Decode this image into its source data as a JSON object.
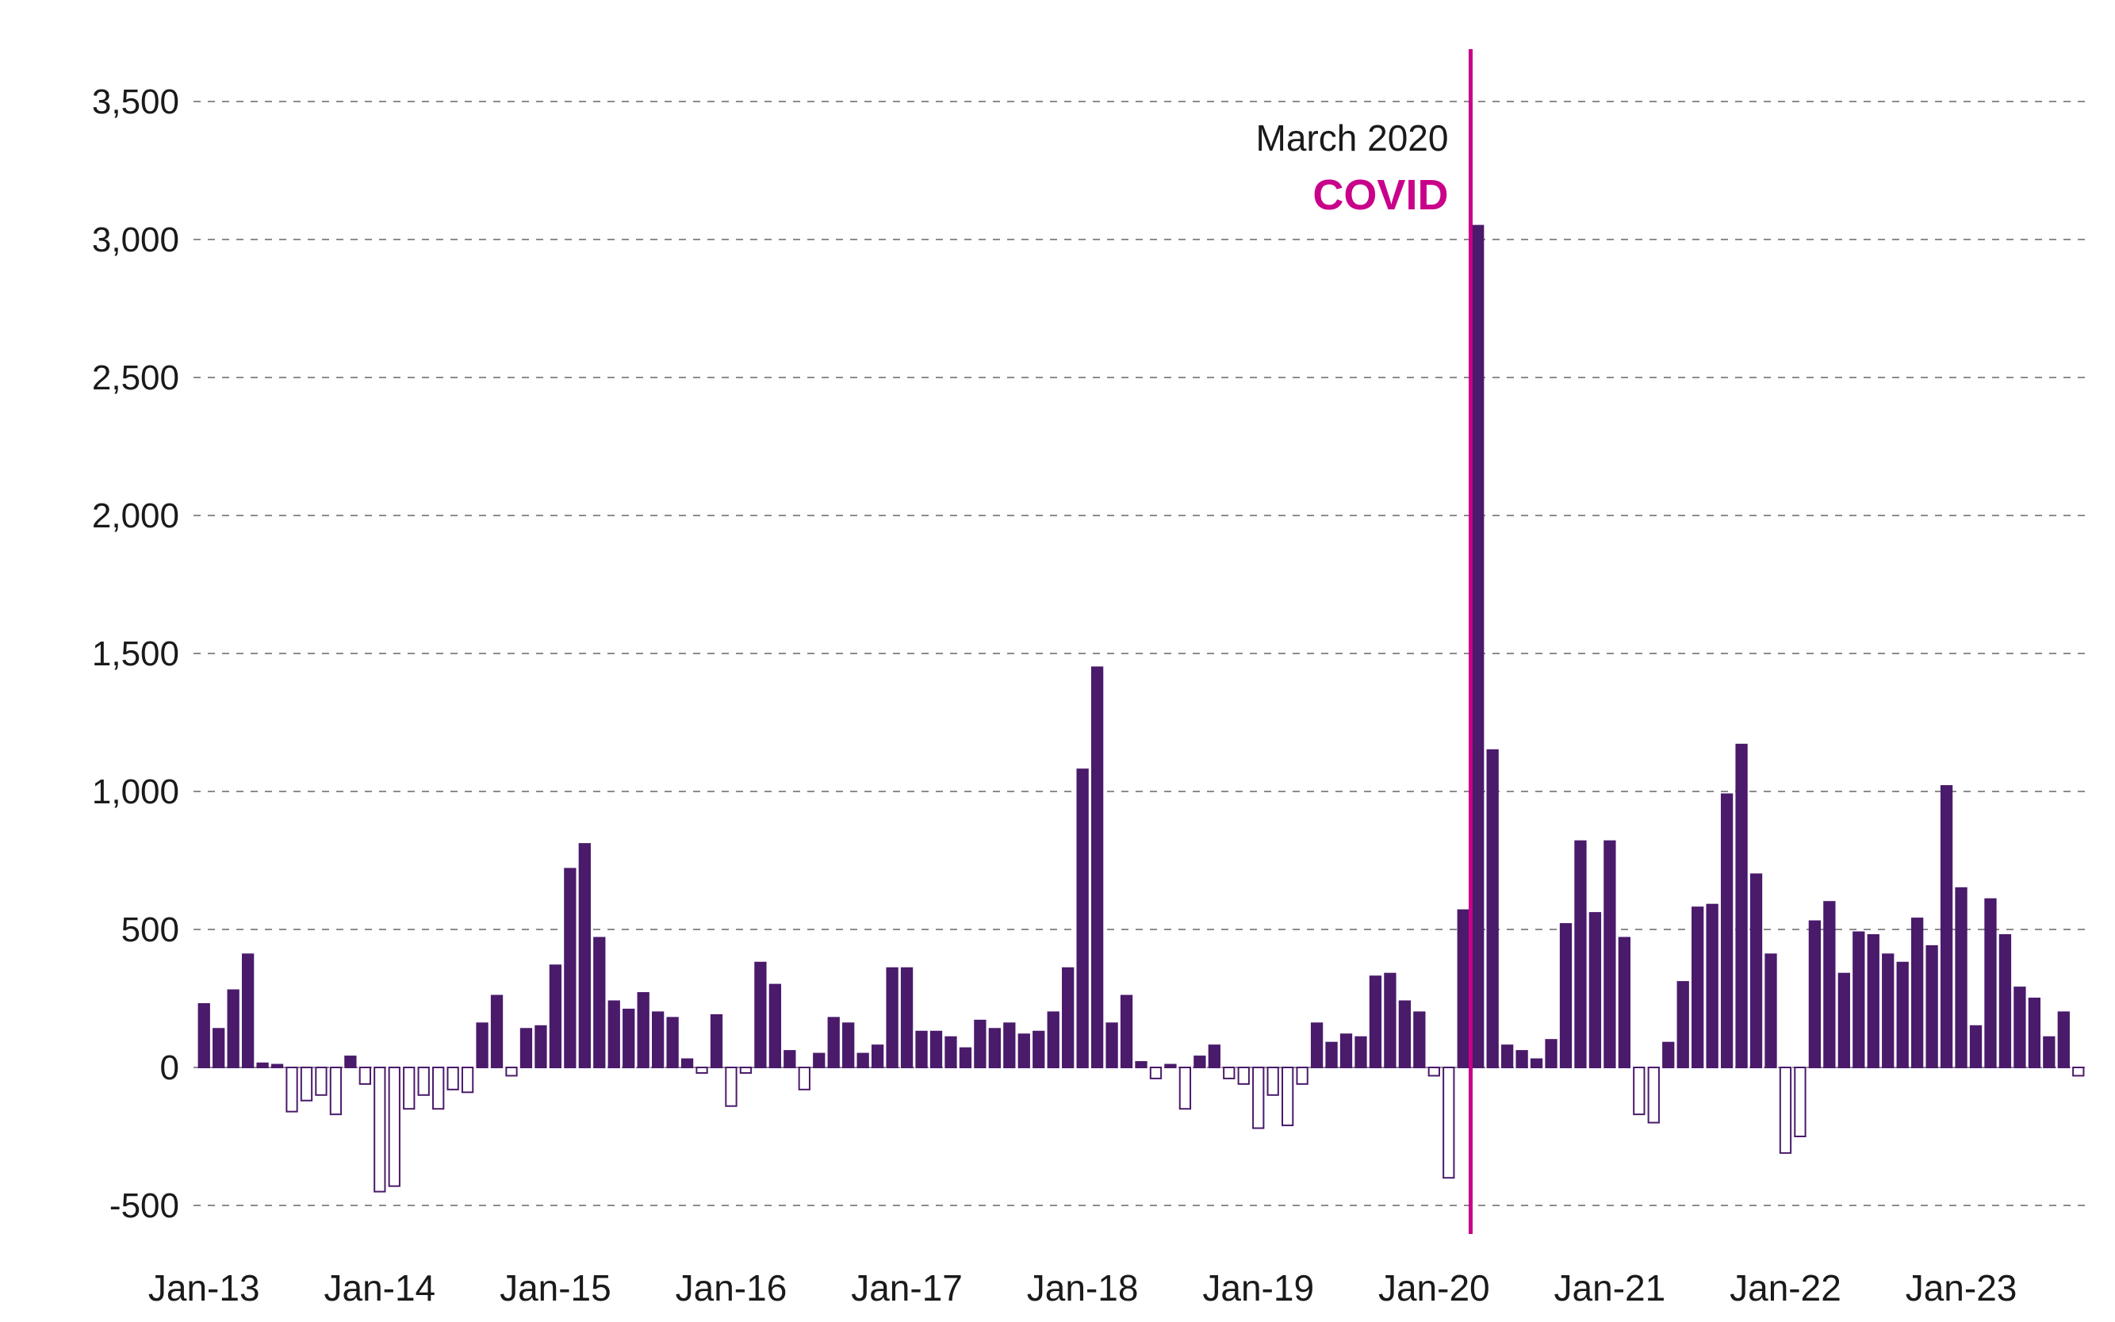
{
  "chart_data": {
    "type": "bar",
    "title": "",
    "xlabel": "",
    "ylabel": "",
    "start_month": "Jan-13",
    "ylim": [
      -500,
      3600
    ],
    "grid": "dashed-horizontal",
    "legend": "none",
    "y_ticks": [
      3500,
      3000,
      2500,
      2000,
      1500,
      1000,
      500,
      0,
      -500
    ],
    "y_tick_labels": [
      "3,500",
      "3,000",
      "2,500",
      "2,000",
      "1,500",
      "1,000",
      "500",
      "0",
      "-500"
    ],
    "x_tick_labels": [
      "Jan-13",
      "Jan-14",
      "Jan-15",
      "Jan-16",
      "Jan-17",
      "Jan-18",
      "Jan-19",
      "Jan-20",
      "Jan-21",
      "Jan-22",
      "Jan-23"
    ],
    "values": [
      230,
      140,
      280,
      410,
      15,
      10,
      -160,
      -120,
      -100,
      -170,
      40,
      -60,
      -450,
      -430,
      -150,
      -100,
      -150,
      -80,
      -90,
      160,
      260,
      -30,
      140,
      150,
      370,
      720,
      810,
      470,
      240,
      210,
      270,
      200,
      180,
      30,
      -20,
      190,
      -140,
      -20,
      380,
      300,
      60,
      -80,
      50,
      180,
      160,
      50,
      80,
      360,
      360,
      130,
      130,
      110,
      70,
      170,
      140,
      160,
      120,
      130,
      200,
      360,
      1080,
      1450,
      160,
      260,
      20,
      -40,
      10,
      -150,
      40,
      80,
      -40,
      -60,
      -220,
      -100,
      -210,
      -60,
      160,
      90,
      120,
      110,
      330,
      340,
      240,
      200,
      -30,
      -400,
      570,
      3050,
      1150,
      80,
      60,
      30,
      100,
      520,
      820,
      560,
      820,
      470,
      -170,
      -200,
      90,
      310,
      580,
      590,
      990,
      1170,
      700,
      410,
      -310,
      -250,
      530,
      600,
      340,
      490,
      480,
      410,
      380,
      540,
      440,
      1020,
      650,
      150,
      610,
      480,
      290,
      250,
      110,
      200,
      -30
    ],
    "annotation": {
      "label": "March 2020",
      "sublabel": "COVID",
      "line_between": [
        "Mar-20",
        "Apr-20"
      ]
    },
    "colors": {
      "bar_positive": "#4a1a6b",
      "bar_negative_fill": "#ffffff",
      "bar_stroke": "#4a1a6b",
      "annotation_line": "#c9008a",
      "annotation_sublabel": "#c9008a",
      "grid": "#8c8c8c",
      "text": "#1a1a1a",
      "background": "#ffffff"
    }
  }
}
